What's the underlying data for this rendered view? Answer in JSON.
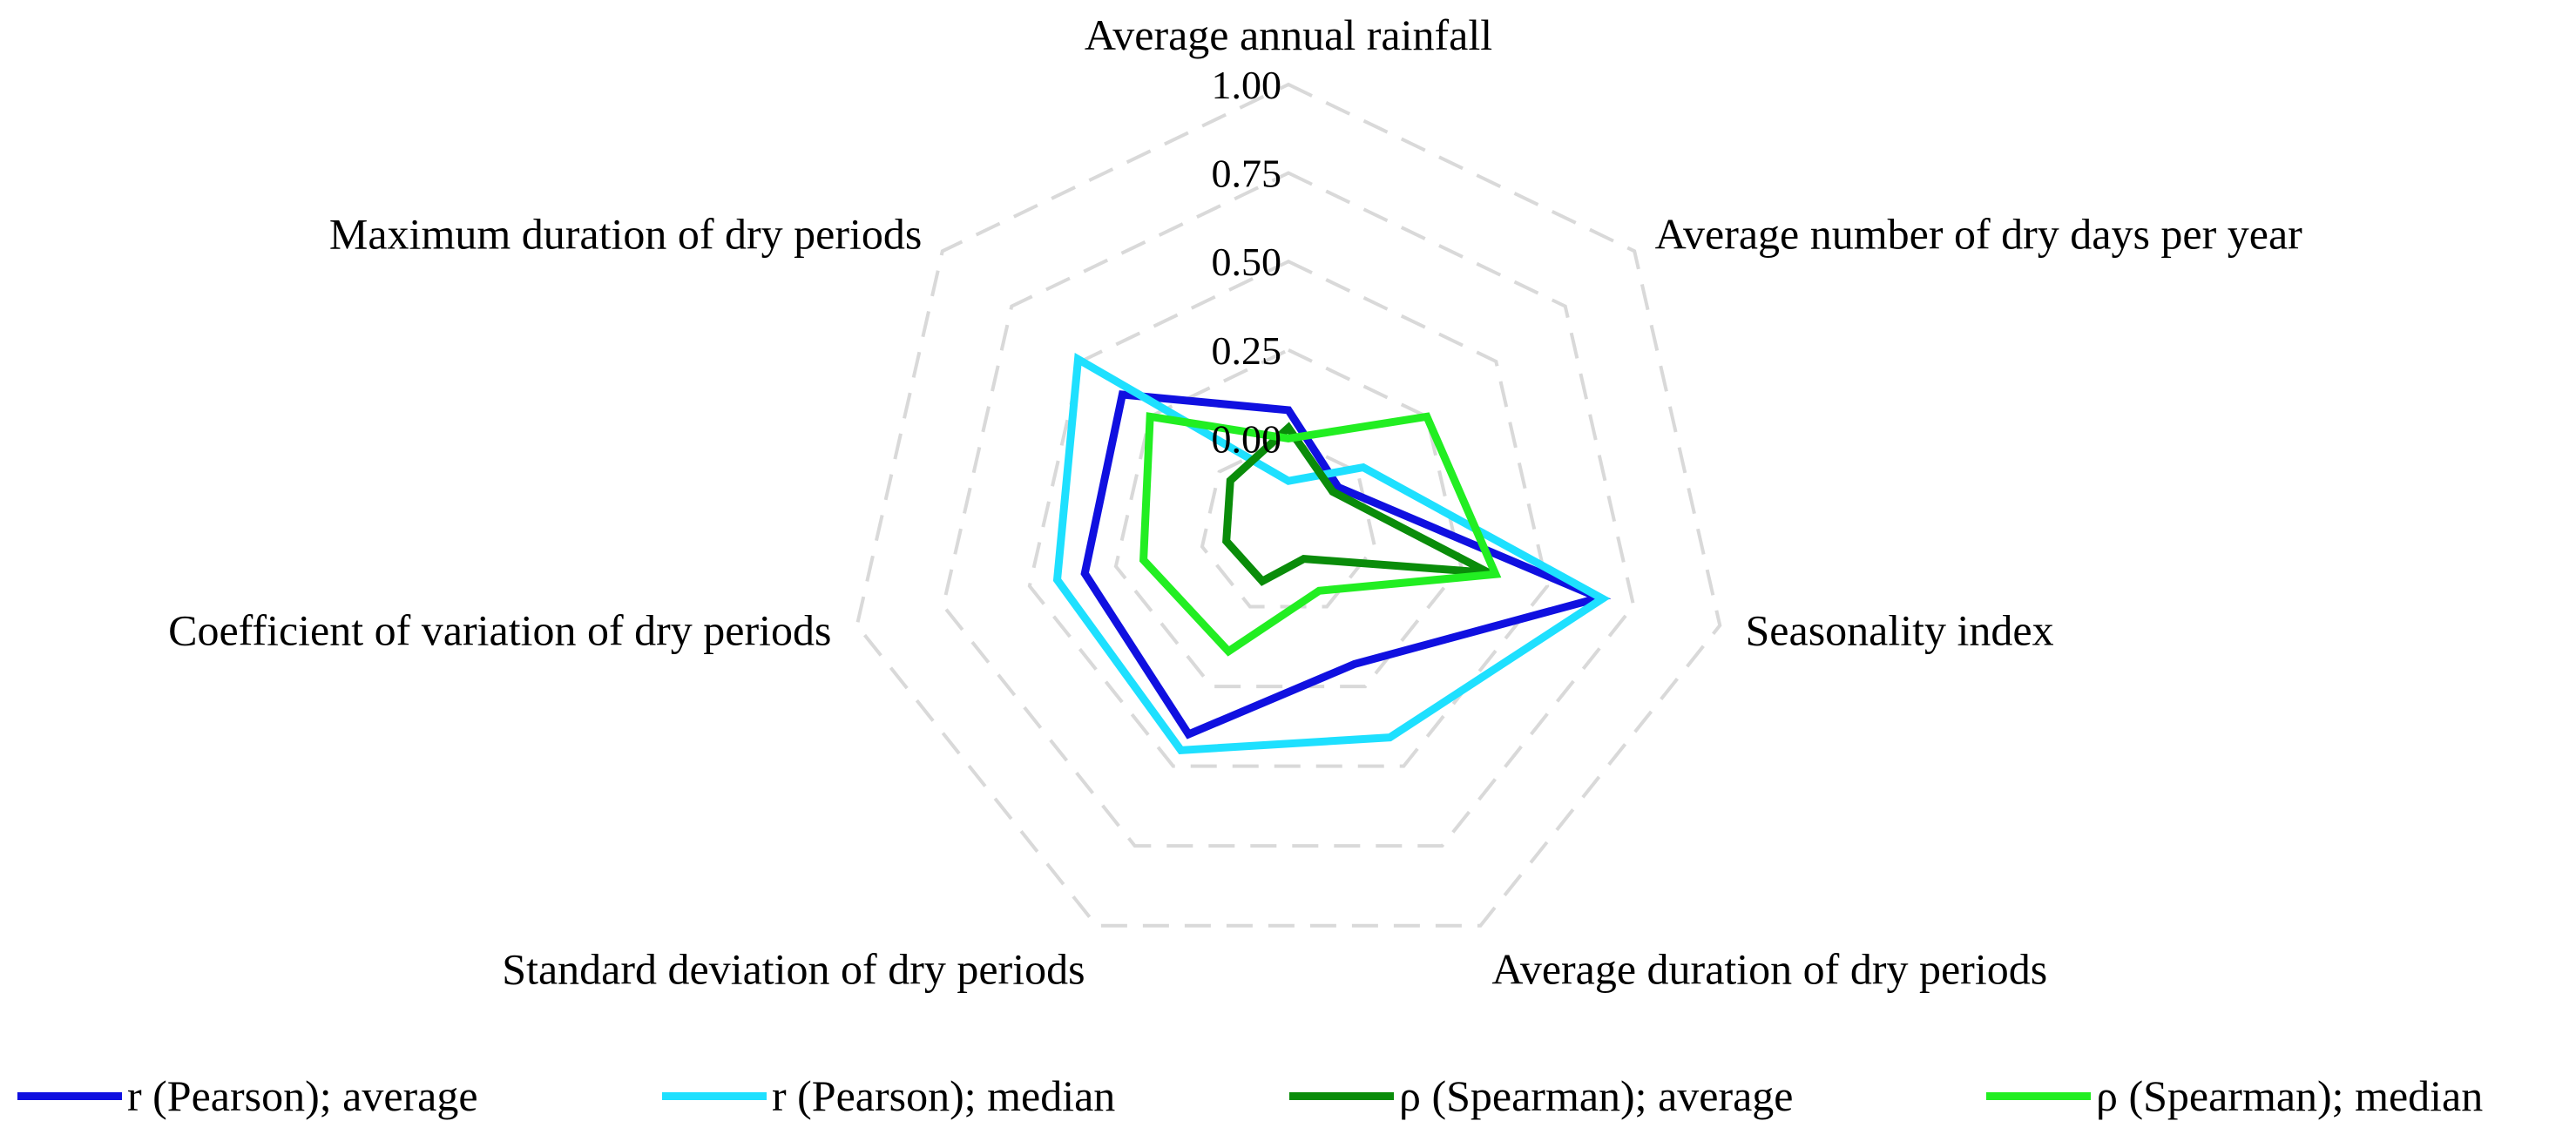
{
  "chart_data": {
    "type": "radar",
    "title": "",
    "axes": [
      "Average annual rainfall",
      "Average number of dry days per year",
      "Seasonality index",
      "Average duration of dry periods",
      "Standard deviation of dry periods",
      "Coefficient of variation of dry periods",
      "Maximum duration of dry periods"
    ],
    "rlim": [
      -0.25,
      1.0
    ],
    "ticks": [
      "0.00",
      "0.25",
      "0.50",
      "0.75",
      "1.00"
    ],
    "tick_values": [
      0.0,
      0.25,
      0.5,
      0.75,
      1.0
    ],
    "grid_levels": [
      -0.25,
      0.0,
      0.25,
      0.5,
      0.75,
      1.0
    ],
    "legend_position": "bottom",
    "series": [
      {
        "name": "r (Pearson); average",
        "color": "#1010e0",
        "values": [
          0.08,
          -0.07,
          0.65,
          0.18,
          0.4,
          0.34,
          0.35
        ]
      },
      {
        "name": "r (Pearson); median",
        "color": "#1ee0ff",
        "values": [
          -0.12,
          0.02,
          0.66,
          0.41,
          0.45,
          0.42,
          0.51
        ]
      },
      {
        "name": "ρ (Spearman); average",
        "color": "#0a8c0a",
        "values": [
          0.03,
          -0.09,
          0.33,
          -0.15,
          -0.08,
          -0.07,
          -0.04
        ]
      },
      {
        "name": "ρ (Spearman); median",
        "color": "#22ee22",
        "values": [
          0.0,
          0.25,
          0.35,
          -0.05,
          0.14,
          0.17,
          0.25
        ]
      }
    ]
  }
}
